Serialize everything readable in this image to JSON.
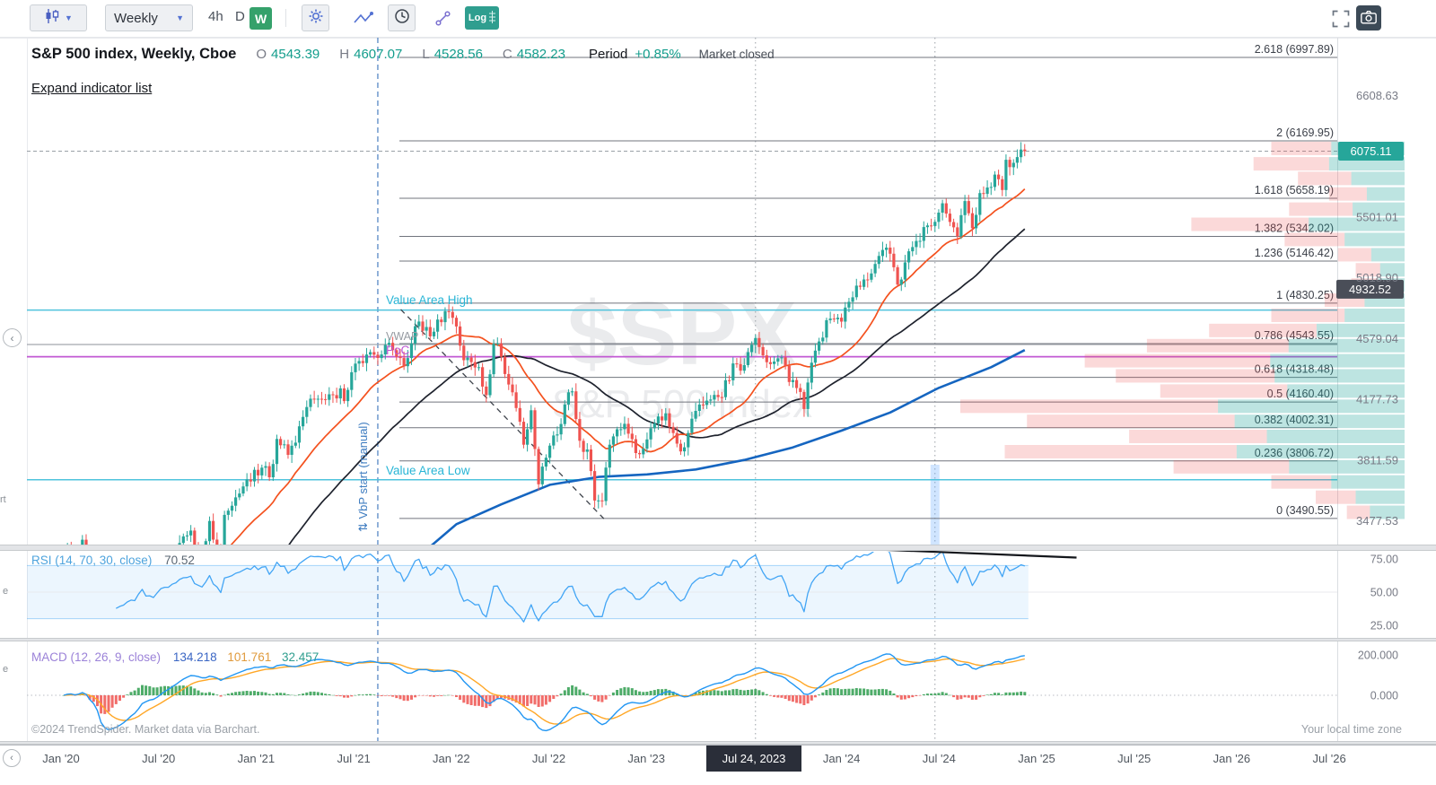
{
  "toolbar": {
    "timeframe_label": "Weekly",
    "tf_4h": "4h",
    "tf_d": "D",
    "tf_w": "W",
    "log_label": "Log"
  },
  "header": {
    "title": "S&P 500 index, Weekly, Cboe",
    "o_label": "O",
    "o": "4543.39",
    "h_label": "H",
    "h": "4607.07",
    "l_label": "L",
    "l": "4528.56",
    "c_label": "C",
    "c": "4582.23",
    "period_label": "Period",
    "period_value": "+0.85%",
    "market_status": "Market closed",
    "expand_link": "Expand indicator list"
  },
  "watermark": {
    "line1": "$SPX",
    "line2": "S&P 500 index"
  },
  "chart_labels": {
    "value_area_high": "Value Area High",
    "value_area_low": "Value Area Low",
    "poc": "PoC",
    "vwap": "VWAP",
    "vbp_start": "⇅ VbP start (manual)"
  },
  "left_rail": {
    "l1": "rt",
    "l2": "e",
    "l3": "e"
  },
  "rsi_panel": {
    "label": "RSI (14, 70, 30, close)",
    "value": "70.52"
  },
  "macd_panel": {
    "label": "MACD (12, 26, 9, close)",
    "v1": "134.218",
    "v2": "101.761",
    "v3": "32.457"
  },
  "footer": {
    "copyright": "©2024 TrendSpider. Market data via Barchart.",
    "timezone": "Your local time zone"
  },
  "time_axis": {
    "ticks": [
      "Jan '20",
      "Jul '20",
      "Jan '21",
      "Jul '21",
      "Jan '22",
      "Jul '22",
      "Jan '23",
      "Jul '23",
      "Jan '24",
      "Jul '24",
      "Jan '25",
      "Jul '25",
      "Jan '26",
      "Jul '26"
    ],
    "selected_date": "Jul 24, 2023"
  },
  "chart_data": {
    "type": "candlestick",
    "symbol": "S&P 500 index",
    "timeframe": "Weekly",
    "scale": "log",
    "x_start": "2020-01-06",
    "last_price": 6075.11,
    "crosshair_price": 4932.52,
    "value_area_high": 4780,
    "value_area_low": 3700,
    "poc": 4455,
    "vwap": 4538,
    "vbp_start_date": "2021-08-16",
    "vertical_marker_dates": [
      "2023-07-24",
      "2024-06-24"
    ],
    "highlight_band": {
      "date": "2024-06-24",
      "price_top": 3785,
      "price_bottom": 3340
    },
    "trendline": {
      "from": [
        "2021-09-28",
        4784
      ],
      "to": [
        "2022-10-16",
        3481
      ]
    },
    "fib_levels": [
      {
        "label": "2.618 (6997.89)",
        "price": 6997.89
      },
      {
        "label": "2 (6169.95)",
        "price": 6169.95
      },
      {
        "label": "1.618 (5658.19)",
        "price": 5658.19
      },
      {
        "label": "1.382 (5342.02)",
        "price": 5342.02
      },
      {
        "label": "1.236 (5146.42)",
        "price": 5146.42
      },
      {
        "label": "1 (4830.25)",
        "price": 4830.25
      },
      {
        "label": "0.786 (4543.55)",
        "price": 4543.55
      },
      {
        "label": "0.618 (4318.48)",
        "price": 4318.48
      },
      {
        "label": "0.5 (4160.40)",
        "price": 4160.4
      },
      {
        "label": "0.382 (4002.31)",
        "price": 4002.31
      },
      {
        "label": "0.236 (3806.72)",
        "price": 3806.72
      },
      {
        "label": "0 (3490.55)",
        "price": 3490.55
      }
    ],
    "price_axis_labels": [
      "6608.63",
      "5501.01",
      "5018.90",
      "4579.04",
      "4177.73",
      "3811.59",
      "3477.53"
    ],
    "price_anchors": [
      [
        "2020-01-06",
        3265
      ],
      [
        "2020-01-13",
        3330
      ],
      [
        "2020-01-27",
        3225
      ],
      [
        "2020-02-10",
        3380
      ],
      [
        "2020-02-24",
        2954
      ],
      [
        "2020-03-02",
        2972
      ],
      [
        "2020-03-09",
        2711
      ],
      [
        "2020-03-16",
        2305
      ],
      [
        "2020-03-23",
        2541
      ],
      [
        "2020-04-06",
        2790
      ],
      [
        "2020-04-20",
        2837
      ],
      [
        "2020-05-04",
        2930
      ],
      [
        "2020-05-18",
        2955
      ],
      [
        "2020-06-01",
        3194
      ],
      [
        "2020-06-08",
        3041
      ],
      [
        "2020-06-22",
        3009
      ],
      [
        "2020-07-06",
        3185
      ],
      [
        "2020-07-27",
        3271
      ],
      [
        "2020-08-17",
        3397
      ],
      [
        "2020-08-31",
        3427
      ],
      [
        "2020-09-14",
        3319
      ],
      [
        "2020-09-21",
        3298
      ],
      [
        "2020-10-05",
        3477
      ],
      [
        "2020-10-26",
        3270
      ],
      [
        "2020-11-02",
        3509
      ],
      [
        "2020-11-16",
        3558
      ],
      [
        "2020-12-07",
        3663
      ],
      [
        "2020-12-28",
        3756
      ],
      [
        "2021-01-11",
        3768
      ],
      [
        "2021-01-25",
        3714
      ],
      [
        "2021-02-08",
        3935
      ],
      [
        "2021-03-01",
        3842
      ],
      [
        "2021-03-15",
        3913
      ],
      [
        "2021-04-05",
        4129
      ],
      [
        "2021-04-26",
        4181
      ],
      [
        "2021-05-10",
        4174
      ],
      [
        "2021-05-24",
        4204
      ],
      [
        "2021-06-07",
        4247
      ],
      [
        "2021-06-14",
        4166
      ],
      [
        "2021-06-28",
        4352
      ],
      [
        "2021-07-19",
        4412
      ],
      [
        "2021-08-09",
        4468
      ],
      [
        "2021-08-30",
        4535
      ],
      [
        "2021-09-20",
        4455
      ],
      [
        "2021-10-04",
        4391
      ],
      [
        "2021-10-18",
        4545
      ],
      [
        "2021-11-01",
        4698
      ],
      [
        "2021-11-22",
        4594
      ],
      [
        "2021-12-06",
        4712
      ],
      [
        "2021-12-27",
        4766
      ],
      [
        "2022-01-10",
        4663
      ],
      [
        "2022-01-24",
        4432
      ],
      [
        "2022-02-07",
        4419
      ],
      [
        "2022-02-21",
        4385
      ],
      [
        "2022-03-07",
        4204
      ],
      [
        "2022-03-21",
        4543
      ],
      [
        "2022-03-28",
        4545
      ],
      [
        "2022-04-18",
        4272
      ],
      [
        "2022-05-02",
        4123
      ],
      [
        "2022-05-16",
        3901
      ],
      [
        "2022-05-30",
        4109
      ],
      [
        "2022-06-13",
        3675
      ],
      [
        "2022-06-27",
        3825
      ],
      [
        "2022-07-18",
        3962
      ],
      [
        "2022-08-01",
        4145
      ],
      [
        "2022-08-15",
        4228
      ],
      [
        "2022-08-29",
        3924
      ],
      [
        "2022-09-12",
        3873
      ],
      [
        "2022-09-26",
        3586
      ],
      [
        "2022-10-10",
        3583
      ],
      [
        "2022-10-24",
        3901
      ],
      [
        "2022-11-07",
        3993
      ],
      [
        "2022-11-21",
        4026
      ],
      [
        "2022-12-05",
        3934
      ],
      [
        "2022-12-19",
        3845
      ],
      [
        "2023-01-09",
        3999
      ],
      [
        "2023-01-23",
        4071
      ],
      [
        "2023-02-06",
        4090
      ],
      [
        "2023-02-20",
        3970
      ],
      [
        "2023-03-06",
        3862
      ],
      [
        "2023-03-20",
        3971
      ],
      [
        "2023-04-03",
        4105
      ],
      [
        "2023-04-24",
        4169
      ],
      [
        "2023-05-15",
        4192
      ],
      [
        "2023-06-05",
        4299
      ],
      [
        "2023-06-12",
        4410
      ],
      [
        "2023-07-03",
        4399
      ],
      [
        "2023-07-17",
        4536
      ],
      [
        "2023-07-24",
        4582.23
      ],
      [
        "2023-08-07",
        4464
      ],
      [
        "2023-08-21",
        4406
      ],
      [
        "2023-09-11",
        4450
      ],
      [
        "2023-09-25",
        4288
      ],
      [
        "2023-10-16",
        4224
      ],
      [
        "2023-10-23",
        4117
      ],
      [
        "2023-11-06",
        4415
      ],
      [
        "2023-11-20",
        4559
      ],
      [
        "2023-12-11",
        4719
      ],
      [
        "2024-01-01",
        4697
      ],
      [
        "2024-01-15",
        4840
      ],
      [
        "2024-01-29",
        4959
      ],
      [
        "2024-02-12",
        5006
      ],
      [
        "2024-03-04",
        5124
      ],
      [
        "2024-03-18",
        5234
      ],
      [
        "2024-04-01",
        5204
      ],
      [
        "2024-04-15",
        4967
      ],
      [
        "2024-05-06",
        5223
      ],
      [
        "2024-05-20",
        5305
      ],
      [
        "2024-06-10",
        5431
      ],
      [
        "2024-06-24",
        5460
      ],
      [
        "2024-07-08",
        5615
      ],
      [
        "2024-07-22",
        5459
      ],
      [
        "2024-08-05",
        5344
      ],
      [
        "2024-08-19",
        5634
      ],
      [
        "2024-09-02",
        5408
      ],
      [
        "2024-09-16",
        5703
      ],
      [
        "2024-09-30",
        5751
      ],
      [
        "2024-10-14",
        5864
      ],
      [
        "2024-10-28",
        5729
      ],
      [
        "2024-11-04",
        5996
      ],
      [
        "2024-11-18",
        5969
      ],
      [
        "2024-12-02",
        6090
      ],
      [
        "2024-12-09",
        6075.11
      ]
    ],
    "sma_periods": {
      "fast": 20,
      "slow": 50,
      "long": 200
    },
    "sma200_anchors": [
      [
        "2021-11-22",
        3345
      ],
      [
        "2022-01-10",
        3460
      ],
      [
        "2022-04-04",
        3565
      ],
      [
        "2022-07-04",
        3672
      ],
      [
        "2022-10-03",
        3716
      ],
      [
        "2023-01-02",
        3730
      ],
      [
        "2023-04-03",
        3758
      ],
      [
        "2023-07-03",
        3812
      ],
      [
        "2023-10-02",
        3885
      ],
      [
        "2024-01-01",
        3985
      ],
      [
        "2024-04-01",
        4095
      ],
      [
        "2024-07-01",
        4250
      ],
      [
        "2024-10-07",
        4385
      ],
      [
        "2024-12-09",
        4500
      ]
    ],
    "volume_profile": [
      [
        6100,
        0.3,
        0.55
      ],
      [
        5960,
        0.34,
        0.5
      ],
      [
        5830,
        0.24,
        0.5
      ],
      [
        5695,
        0.17,
        0.5
      ],
      [
        5566,
        0.26,
        0.45
      ],
      [
        5440,
        0.48,
        0.45
      ],
      [
        5317,
        0.27,
        0.5
      ],
      [
        5196,
        0.15,
        0.5
      ],
      [
        5079,
        0.11,
        0.5
      ],
      [
        4964,
        0.12,
        0.5
      ],
      [
        4852,
        0.18,
        0.5
      ],
      [
        4742,
        0.3,
        0.45
      ],
      [
        4635,
        0.44,
        0.45
      ],
      [
        4530,
        0.58,
        0.45
      ],
      [
        4428,
        0.72,
        0.42
      ],
      [
        4328,
        0.65,
        0.45
      ],
      [
        4230,
        0.55,
        0.48
      ],
      [
        4134,
        1.0,
        0.42
      ],
      [
        4041,
        0.85,
        0.45
      ],
      [
        3950,
        0.62,
        0.5
      ],
      [
        3860,
        0.9,
        0.42
      ],
      [
        3773,
        0.52,
        0.5
      ],
      [
        3688,
        0.3,
        0.55
      ],
      [
        3604,
        0.2,
        0.55
      ],
      [
        3523,
        0.13,
        0.6
      ]
    ],
    "rsi": {
      "period": 14,
      "value": 70.52,
      "upper": 70,
      "lower": 30,
      "axis": [
        75,
        50,
        25
      ],
      "trendline": {
        "from": [
          "2024-03-14",
          82
        ],
        "to": [
          "2025-03-16",
          76
        ]
      }
    },
    "macd": {
      "fast": 12,
      "slow": 26,
      "signal": 9,
      "values": [
        134.218,
        101.761,
        32.457
      ],
      "axis": [
        200,
        0
      ]
    },
    "colors": {
      "up": "#26a69a",
      "down": "#ef5350",
      "sma_fast": "#f4511e",
      "sma_slow": "#1e222d",
      "sma200": "#1565c0",
      "value_area": "#4fc3dc",
      "poc": "#c158d3",
      "vwap": "#a3a8ae",
      "fib_line": "#70747d",
      "rsi": "#42a5f5",
      "macd_line": "#2196f3",
      "macd_signal": "#ffa726",
      "hist_up": "#2f9e4f",
      "hist_down": "#ef5350",
      "profile_up": "rgba(38,166,154,0.30)",
      "profile_down": "rgba(239,83,80,0.22)",
      "vbp_line": "#4a7fc1",
      "marker": "#9aa0a6",
      "trendline": "#3f444c",
      "rsi_trendline": "#14171c",
      "last_price_bg": "#26a69a",
      "crosshair_bg": "#4a4e58"
    }
  }
}
